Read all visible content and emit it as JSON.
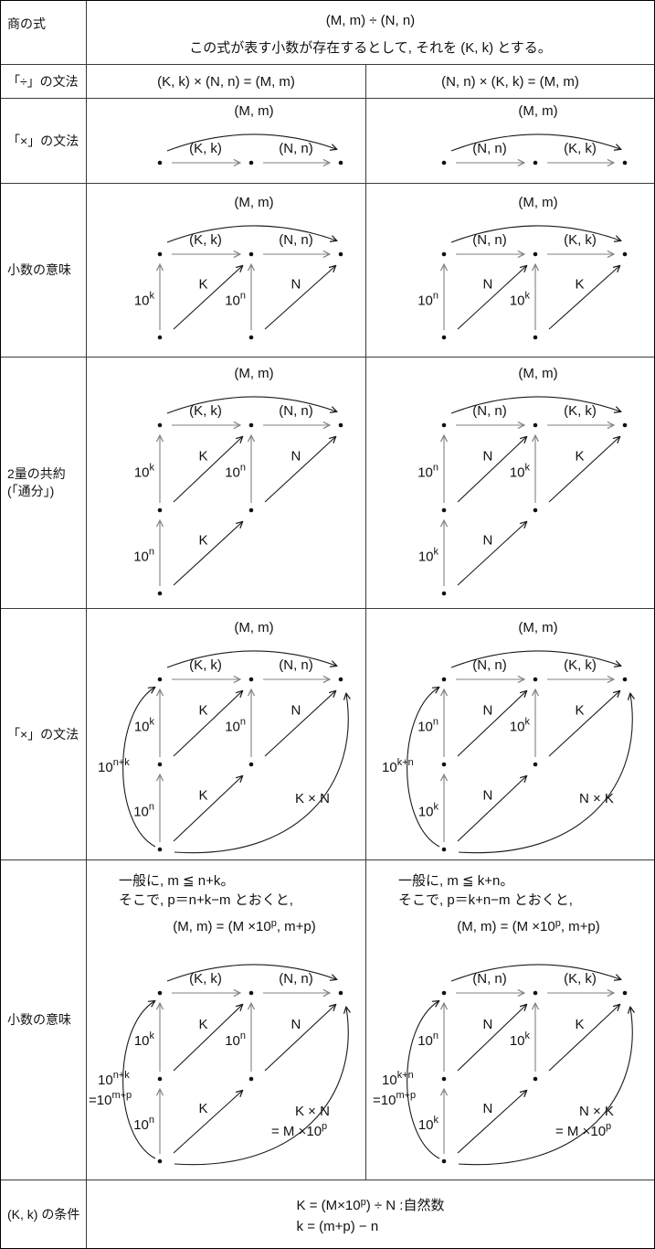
{
  "colors": {
    "arrowGray": "#828282",
    "arrowBlack": "#1a1a1a",
    "text": "#111111",
    "border": "#3a3a3a"
  },
  "rows": {
    "r1": {
      "label": "商の式",
      "line1": "(M, m) ÷ (N, n)",
      "line2": "この式が表す小数が存在するとして, それを (K, k) とする。"
    },
    "r2": {
      "label": "「÷」の文法",
      "left": "(K, k) × (N, n) = (M, m)",
      "right": "(N, n) × (K, k) = (M, m)"
    },
    "r3": {
      "label": "「×」の文法"
    },
    "r4": {
      "label": "小数の意味"
    },
    "r5": {
      "label": "2量の共約",
      "label2": "(「通分」)"
    },
    "r6": {
      "label": "「×」の文法"
    },
    "r7": {
      "label": "小数の意味"
    },
    "r8": {
      "label": "(K, k) の条件",
      "line1": "K = (M×10^{p}) ÷ N :自然数",
      "line2": "k = (m+p) − n"
    }
  },
  "diagrams": {
    "row3": {
      "left": {
        "layout": "L1",
        "arc": "(M, m)",
        "top": [
          "(K, k)",
          "(N, n)"
        ]
      },
      "right": {
        "layout": "L1",
        "arc": "(M, m)",
        "top": [
          "(N, n)",
          "(K, k)"
        ]
      }
    },
    "row4": {
      "left": {
        "layout": "L2",
        "arc": "(M, m)",
        "top": [
          "(K, k)",
          "(N, n)"
        ],
        "verts": [
          "10^{k}",
          "10^{n}"
        ],
        "diags": [
          "K",
          "N"
        ]
      },
      "right": {
        "layout": "L2",
        "arc": "(M, m)",
        "top": [
          "(N, n)",
          "(K, k)"
        ],
        "verts": [
          "10^{n}",
          "10^{k}"
        ],
        "diags": [
          "N",
          "K"
        ]
      }
    },
    "row5": {
      "left": {
        "layout": "L3",
        "arc": "(M, m)",
        "top": [
          "(K, k)",
          "(N, n)"
        ],
        "verts": [
          "10^{k}",
          "10^{n}"
        ],
        "diags": [
          "K",
          "N"
        ],
        "vert2": "10^{n}",
        "diag2": "K"
      },
      "right": {
        "layout": "L3",
        "arc": "(M, m)",
        "top": [
          "(N, n)",
          "(K, k)"
        ],
        "verts": [
          "10^{n}",
          "10^{k}"
        ],
        "diags": [
          "N",
          "K"
        ],
        "vert2": "10^{k}",
        "diag2": "N"
      }
    },
    "row6": {
      "left": {
        "layout": "L4",
        "arc": "(M, m)",
        "top": [
          "(K, k)",
          "(N, n)"
        ],
        "verts": [
          "10^{k}",
          "10^{n}"
        ],
        "diags": [
          "K",
          "N"
        ],
        "vert2": "10^{n}",
        "diag2": "K",
        "leftCurve": [
          "10^{n+k}"
        ],
        "longCurve": [
          "K × N"
        ]
      },
      "right": {
        "layout": "L4",
        "arc": "(M, m)",
        "top": [
          "(N, n)",
          "(K, k)"
        ],
        "verts": [
          "10^{n}",
          "10^{k}"
        ],
        "diags": [
          "N",
          "K"
        ],
        "vert2": "10^{k}",
        "diag2": "N",
        "leftCurve": [
          "10^{k+n}"
        ],
        "longCurve": [
          "N × K"
        ]
      }
    },
    "row7": {
      "left": {
        "layout": "L5",
        "top": [
          "(K, k)",
          "(N, n)"
        ],
        "verts": [
          "10^{k}",
          "10^{n}"
        ],
        "diags": [
          "K",
          "N"
        ],
        "vert2": "10^{n}",
        "diag2": "K",
        "leftCurve": [
          "10^{n+k}",
          "=10^{m+p}"
        ],
        "longCurve": [
          "K × N",
          "= M ×10^{p}"
        ],
        "pre1": "一般に, m ≦ n+k。",
        "pre2": "そこで, p＝n+k−m とおくと,",
        "formula": "(M, m) = (M ×10^{p}, m+p)"
      },
      "right": {
        "layout": "L5",
        "top": [
          "(N, n)",
          "(K, k)"
        ],
        "verts": [
          "10^{n}",
          "10^{k}"
        ],
        "diags": [
          "N",
          "K"
        ],
        "vert2": "10^{k}",
        "diag2": "N",
        "leftCurve": [
          "10^{k+n}",
          "=10^{m+p}"
        ],
        "longCurve": [
          "N × K",
          "= M ×10^{p}"
        ],
        "pre1": "一般に, m ≦ k+n。",
        "pre2": "そこで, p＝k+n−m とおくと,",
        "formula": "(M, m) = (M ×10^{p}, m+p)"
      }
    }
  }
}
